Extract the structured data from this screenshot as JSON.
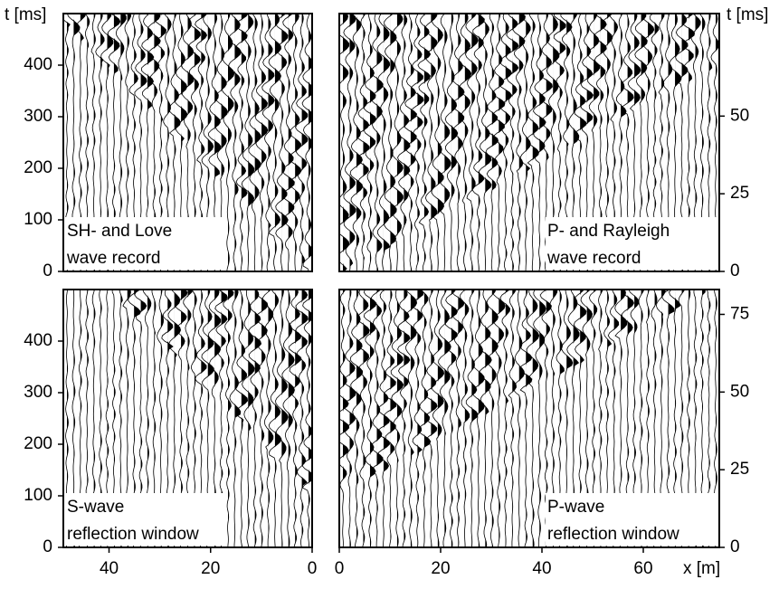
{
  "chart_data": [
    {
      "type": "seismogram",
      "label": [
        "SH- and Love",
        "wave record"
      ],
      "ylabel": "t [ms]",
      "xlim": [
        49,
        0
      ],
      "ylim": [
        0,
        500
      ],
      "yticks": [
        0,
        100,
        200,
        300,
        400
      ]
    },
    {
      "type": "seismogram",
      "label": [
        "P- and Rayleigh",
        "wave record"
      ],
      "ylabel": "t [ms]",
      "xlim": [
        0,
        75
      ],
      "ylim": [
        0,
        83
      ],
      "yticks": [
        0,
        25,
        50
      ]
    },
    {
      "type": "seismogram",
      "label": [
        "S-wave",
        "reflection window"
      ],
      "xlim": [
        49,
        0
      ],
      "ylim": [
        0,
        500
      ],
      "yticks": [
        0,
        100,
        200,
        300,
        400
      ],
      "xticks": [
        40,
        20,
        0
      ]
    },
    {
      "type": "seismogram",
      "label": [
        "P-wave",
        "reflection window"
      ],
      "xlabel": "x [m]",
      "xlim": [
        0,
        75
      ],
      "ylim": [
        0,
        83
      ],
      "yticks": [
        0,
        25,
        50,
        75
      ],
      "xticks": [
        0,
        20,
        40,
        60
      ]
    }
  ]
}
